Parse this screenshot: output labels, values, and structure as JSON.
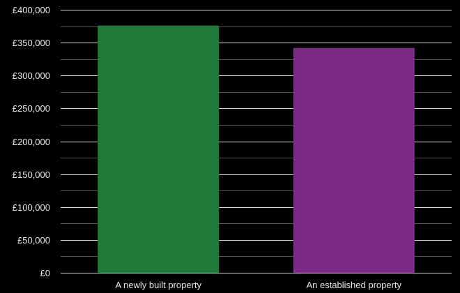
{
  "chart_data": {
    "type": "bar",
    "categories": [
      "A newly built property",
      "An established property"
    ],
    "values": [
      376000,
      342000
    ],
    "colors": [
      "#1e7a36",
      "#7b2a86"
    ],
    "title": "",
    "xlabel": "",
    "ylabel": "",
    "ylim": [
      0,
      400000
    ],
    "y_ticks": [
      0,
      50000,
      100000,
      150000,
      200000,
      250000,
      300000,
      350000,
      400000
    ],
    "y_tick_labels": [
      "£0",
      "£50,000",
      "£100,000",
      "£150,000",
      "£200,000",
      "£250,000",
      "£300,000",
      "£350,000",
      "£400,000"
    ],
    "minor_grid_step": 25000,
    "grid": true,
    "legend": "none",
    "background": "#000000",
    "grid_color": "#ffffff",
    "minor_grid_color": "#555555"
  }
}
